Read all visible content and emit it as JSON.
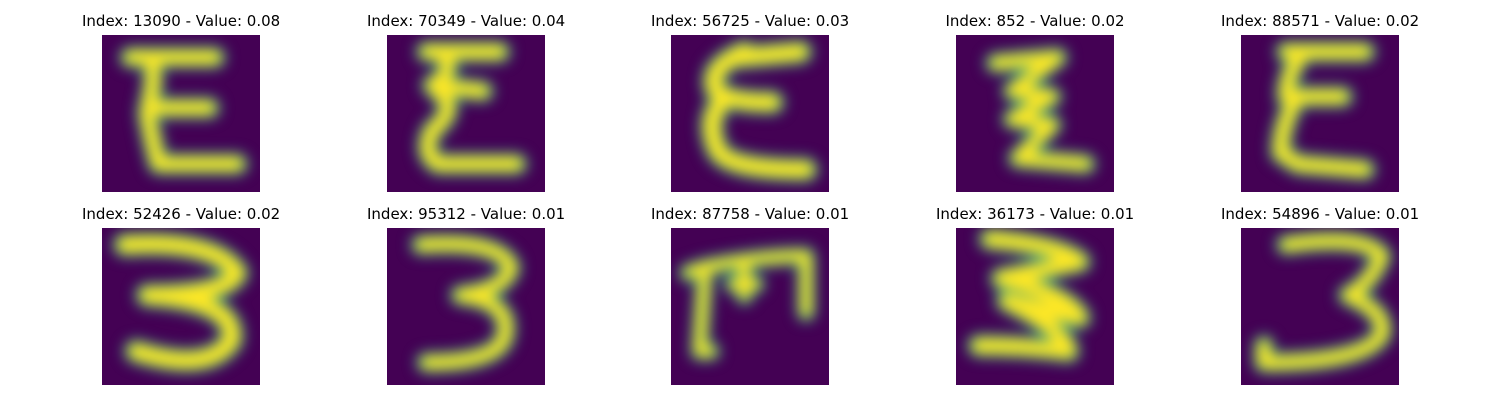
{
  "panels": [
    {
      "title": "Index: 13090 - Value: 0.08",
      "glyph": "E"
    },
    {
      "title": "Index: 70349 - Value: 0.04",
      "glyph": "E"
    },
    {
      "title": "Index: 56725 - Value: 0.03",
      "glyph": "E"
    },
    {
      "title": "Index: 852 - Value: 0.02",
      "glyph": "E"
    },
    {
      "title": "Index: 88571 - Value: 0.02",
      "glyph": "E"
    },
    {
      "title": "Index: 52426 - Value: 0.02",
      "glyph": "3"
    },
    {
      "title": "Index: 95312 - Value: 0.01",
      "glyph": "3"
    },
    {
      "title": "Index: 87758 - Value: 0.01",
      "glyph": "M"
    },
    {
      "title": "Index: 36173 - Value: 0.01",
      "glyph": "3"
    },
    {
      "title": "Index: 54896 - Value: 0.01",
      "glyph": "3"
    }
  ],
  "colors": {
    "background": "#440154",
    "stroke": "#fde725",
    "edge": "#21918c"
  }
}
